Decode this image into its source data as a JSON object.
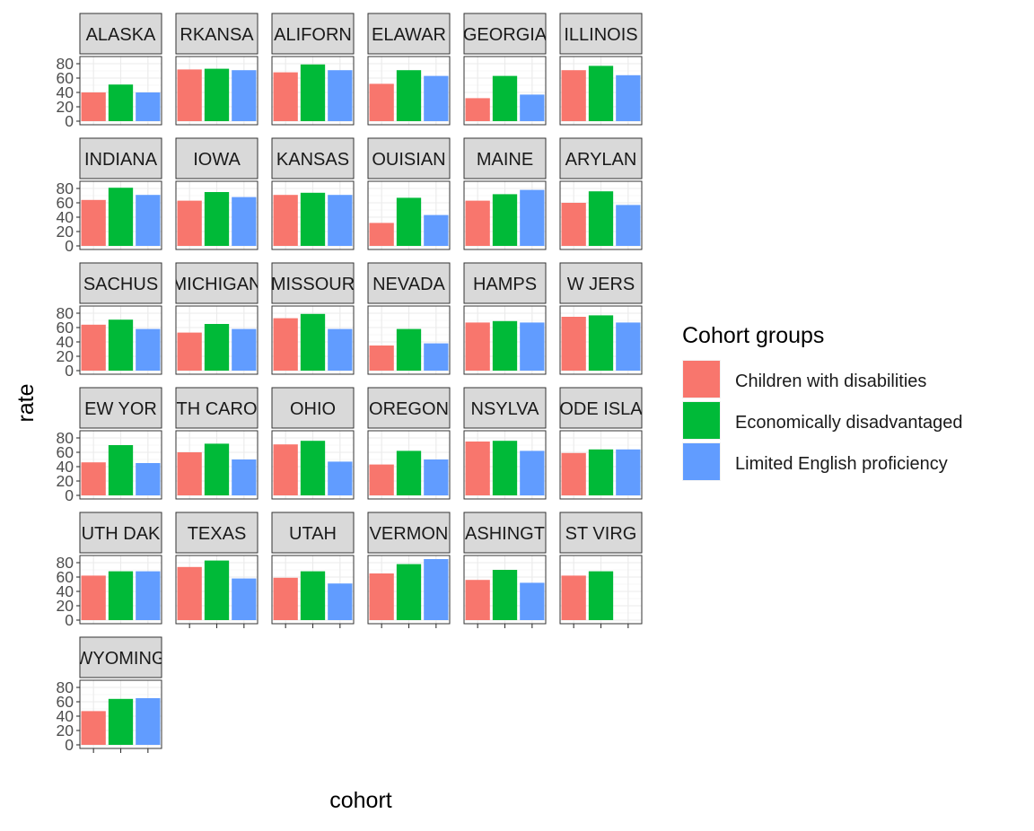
{
  "chart_data": {
    "type": "bar",
    "facet_by": "state",
    "xlabel": "cohort",
    "ylabel": "rate",
    "ylim": [
      0,
      85
    ],
    "y_ticks": [
      0,
      20,
      40,
      60,
      80
    ],
    "grid": true,
    "legend": {
      "title": "Cohort groups",
      "position": "right",
      "entries": [
        {
          "name": "Children with disabilities",
          "color": "#F8766D"
        },
        {
          "name": "Economically disadvantaged",
          "color": "#00BA38"
        },
        {
          "name": "Limited English proficiency",
          "color": "#619CFF"
        }
      ]
    },
    "categories": [
      "Children with disabilities",
      "Economically disadvantaged",
      "Limited English proficiency"
    ],
    "facets": [
      {
        "strip": "ALASKA",
        "values": [
          40,
          51,
          40
        ]
      },
      {
        "strip": "RKANSA",
        "values": [
          72,
          73,
          71
        ]
      },
      {
        "strip": "ALIFORN",
        "values": [
          68,
          79,
          71
        ]
      },
      {
        "strip": "ELAWAR",
        "values": [
          52,
          71,
          63
        ]
      },
      {
        "strip": "GEORGIA",
        "values": [
          32,
          63,
          37
        ]
      },
      {
        "strip": "ILLINOIS",
        "values": [
          71,
          77,
          64
        ]
      },
      {
        "strip": "INDIANA",
        "values": [
          64,
          81,
          71
        ]
      },
      {
        "strip": "IOWA",
        "values": [
          63,
          75,
          68
        ]
      },
      {
        "strip": "KANSAS",
        "values": [
          71,
          74,
          71
        ]
      },
      {
        "strip": "OUISIAN",
        "values": [
          32,
          67,
          43
        ]
      },
      {
        "strip": "MAINE",
        "values": [
          63,
          72,
          78
        ]
      },
      {
        "strip": "ARYLAN",
        "values": [
          60,
          76,
          57
        ]
      },
      {
        "strip": "SACHUS",
        "values": [
          64,
          71,
          58
        ]
      },
      {
        "strip": "MICHIGAN",
        "values": [
          53,
          65,
          58
        ]
      },
      {
        "strip": "MISSOUR",
        "values": [
          73,
          79,
          58
        ]
      },
      {
        "strip": "NEVADA",
        "values": [
          35,
          58,
          38
        ]
      },
      {
        "strip": "HAMPS",
        "values": [
          67,
          69,
          67
        ]
      },
      {
        "strip": "W JERS",
        "values": [
          75,
          77,
          67
        ]
      },
      {
        "strip": "EW YOR",
        "values": [
          46,
          70,
          45
        ]
      },
      {
        "strip": "TH CARO",
        "values": [
          60,
          72,
          50
        ]
      },
      {
        "strip": "OHIO",
        "values": [
          71,
          76,
          47
        ]
      },
      {
        "strip": "OREGON",
        "values": [
          43,
          62,
          50
        ]
      },
      {
        "strip": "NSYLVA",
        "values": [
          75,
          76,
          62
        ]
      },
      {
        "strip": "ODE ISLA",
        "values": [
          59,
          64,
          64
        ]
      },
      {
        "strip": "UTH DAK",
        "values": [
          62,
          68,
          68
        ]
      },
      {
        "strip": "TEXAS",
        "values": [
          74,
          83,
          58
        ]
      },
      {
        "strip": "UTAH",
        "values": [
          59,
          68,
          51
        ]
      },
      {
        "strip": "VERMON",
        "values": [
          65,
          78,
          85
        ]
      },
      {
        "strip": "ASHINGT",
        "values": [
          56,
          70,
          52
        ]
      },
      {
        "strip": "ST VIRG",
        "values": [
          62,
          68,
          null
        ]
      },
      {
        "strip": "WYOMING",
        "values": [
          47,
          64,
          65
        ]
      }
    ],
    "x_tick_labels_blank": true
  }
}
